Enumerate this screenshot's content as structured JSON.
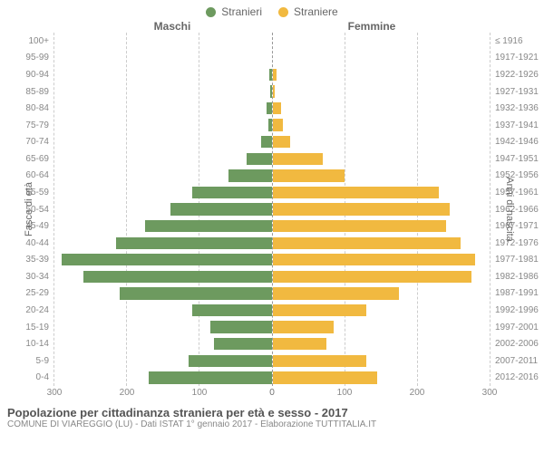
{
  "legend": [
    {
      "label": "Stranieri",
      "color": "#6d9a5f"
    },
    {
      "label": "Straniere",
      "color": "#f1b940"
    }
  ],
  "column_headers": {
    "left": "Maschi",
    "right": "Femmine"
  },
  "axis_labels": {
    "left": "Fasce di età",
    "right": "Anni di nascita"
  },
  "age_groups": [
    "100+",
    "95-99",
    "90-94",
    "85-89",
    "80-84",
    "75-79",
    "70-74",
    "65-69",
    "60-64",
    "55-59",
    "50-54",
    "45-49",
    "40-44",
    "35-39",
    "30-34",
    "25-29",
    "20-24",
    "15-19",
    "10-14",
    "5-9",
    "0-4"
  ],
  "birth_years": [
    "≤ 1916",
    "1917-1921",
    "1922-1926",
    "1927-1931",
    "1932-1936",
    "1937-1941",
    "1942-1946",
    "1947-1951",
    "1952-1956",
    "1957-1961",
    "1962-1966",
    "1967-1971",
    "1972-1976",
    "1977-1981",
    "1982-1986",
    "1987-1991",
    "1992-1996",
    "1997-2001",
    "2002-2006",
    "2007-2011",
    "2012-2016"
  ],
  "male_values": [
    0,
    0,
    3,
    2,
    7,
    5,
    15,
    35,
    60,
    110,
    140,
    175,
    215,
    290,
    260,
    210,
    110,
    85,
    80,
    115,
    170
  ],
  "female_values": [
    0,
    0,
    6,
    3,
    12,
    15,
    25,
    70,
    100,
    230,
    245,
    240,
    260,
    280,
    275,
    175,
    130,
    85,
    75,
    130,
    145
  ],
  "x_max": 300,
  "x_ticks_left": [
    300,
    200,
    100,
    0
  ],
  "x_ticks_right": [
    0,
    100,
    200,
    300
  ],
  "grid_step": 100,
  "colors": {
    "male_bar": "#6d9a5f",
    "female_bar": "#f1b940",
    "grid": "#cccccc",
    "text_muted": "#888888"
  },
  "footer": {
    "title": "Popolazione per cittadinanza straniera per età e sesso - 2017",
    "subtitle": "COMUNE DI VIAREGGIO (LU) - Dati ISTAT 1° gennaio 2017 - Elaborazione TUTTITALIA.IT"
  }
}
